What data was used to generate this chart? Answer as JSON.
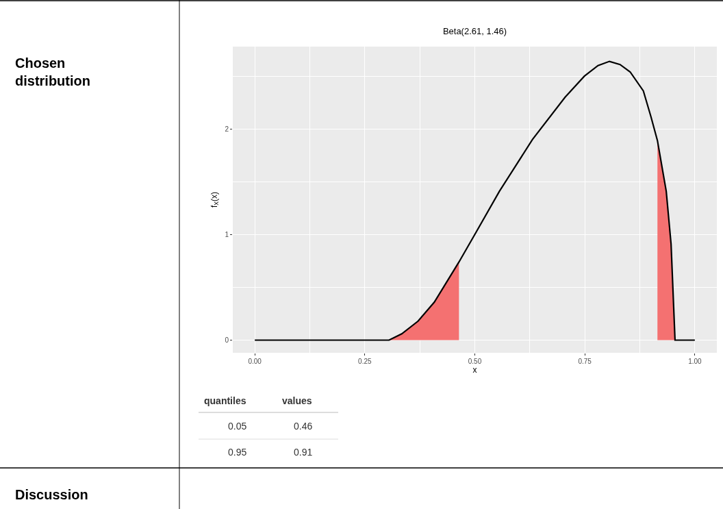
{
  "chart_data": {
    "type": "line",
    "title": "Beta(2.61, 1.46)",
    "xlabel": "x",
    "ylabel": "f$_{X}$(x)",
    "series": [
      {
        "type": "area",
        "color": "#f47171",
        "x": [
          0.305,
          0.334,
          0.371,
          0.408,
          0.464
        ],
        "values": [
          0,
          0.06,
          0.18,
          0.36,
          0.74
        ]
      },
      {
        "type": "area",
        "color": "#f47171",
        "x": [
          0.915,
          0.935,
          0.946,
          0.955
        ],
        "values": [
          1.89,
          1.41,
          0.91,
          0
        ]
      },
      {
        "color": "#000000",
        "x": [
          0,
          0.305,
          0.334,
          0.371,
          0.408,
          0.464,
          0.504,
          0.556,
          0.631,
          0.705,
          0.749,
          0.78,
          0.806,
          0.83,
          0.853,
          0.883,
          0.9,
          0.915,
          0.935,
          0.946,
          0.955,
          1.0
        ],
        "values": [
          0,
          0,
          0.06,
          0.18,
          0.36,
          0.74,
          1.03,
          1.41,
          1.9,
          2.3,
          2.5,
          2.6,
          2.64,
          2.61,
          2.54,
          2.36,
          2.12,
          1.89,
          1.41,
          0.91,
          0,
          0
        ]
      }
    ],
    "xlim": [
      -0.05,
      1.05
    ],
    "ylim": [
      -0.12,
      2.78
    ],
    "xticks": [
      {
        "value": 0,
        "label": "0.00"
      },
      {
        "value": 0.25,
        "label": "0.25"
      },
      {
        "value": 0.5,
        "label": "0.50"
      },
      {
        "value": 0.75,
        "label": "0.75"
      },
      {
        "value": 1,
        "label": "1.00"
      }
    ],
    "yticks": [
      0,
      1,
      2
    ],
    "grid": true,
    "annotations": [
      "Chosen\ndistribution",
      "Discussion",
      "quantiles",
      "values",
      "0.05",
      "0.46",
      "0.95",
      "0.91"
    ]
  }
}
